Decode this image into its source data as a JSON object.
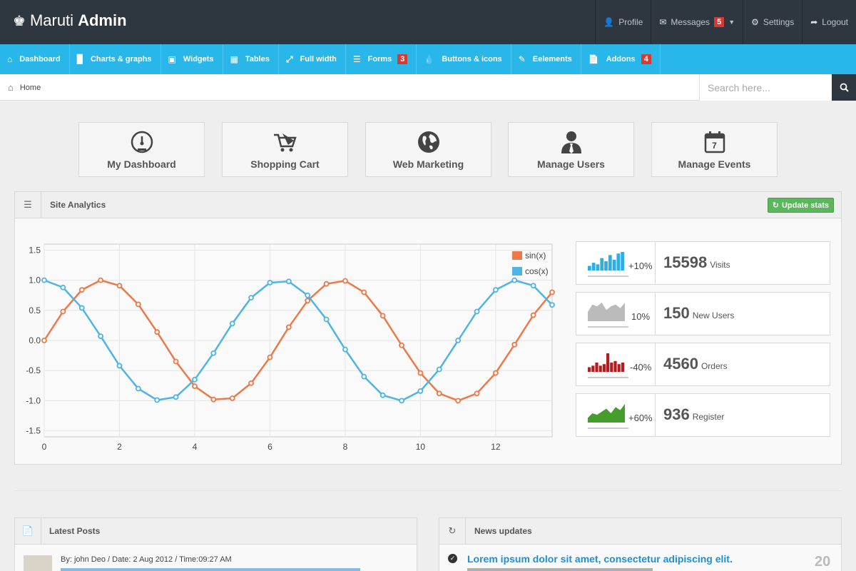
{
  "header": {
    "brand_light": "Maruti",
    "brand_bold": "Admin",
    "nav": [
      {
        "label": "Profile",
        "icon": "user-icon"
      },
      {
        "label": "Messages",
        "icon": "envelope-icon",
        "badge": "5"
      },
      {
        "label": "Settings",
        "icon": "gear-icon"
      },
      {
        "label": "Logout",
        "icon": "share-icon"
      }
    ]
  },
  "menu": [
    {
      "label": "Dashboard",
      "icon": "home-icon"
    },
    {
      "label": "Charts & graphs",
      "icon": "signal-icon"
    },
    {
      "label": "Widgets",
      "icon": "inbox-icon"
    },
    {
      "label": "Tables",
      "icon": "grid-icon"
    },
    {
      "label": "Full width",
      "icon": "fullscreen-icon"
    },
    {
      "label": "Forms",
      "icon": "list-icon",
      "badge": "3"
    },
    {
      "label": "Buttons & icons",
      "icon": "drop-icon"
    },
    {
      "label": "Eelements",
      "icon": "pencil-icon"
    },
    {
      "label": "Addons",
      "icon": "file-icon",
      "badge": "4"
    }
  ],
  "breadcrumb": {
    "home": "Home"
  },
  "search": {
    "placeholder": "Search here..."
  },
  "quick_buttons": [
    {
      "label": "My Dashboard",
      "icon": "gauge-icon"
    },
    {
      "label": "Shopping Cart",
      "icon": "cart-icon"
    },
    {
      "label": "Web Marketing",
      "icon": "globe-icon"
    },
    {
      "label": "Manage Users",
      "icon": "user-tie-icon"
    },
    {
      "label": "Manage Events",
      "icon": "calendar-icon",
      "icon_text": "7"
    }
  ],
  "analytics": {
    "title": "Site Analytics",
    "update_label": "Update stats",
    "stats": [
      {
        "pct": "+10%",
        "value": "15598",
        "label": "Visits",
        "color": "#2eaee6",
        "kind": "bars",
        "spark": [
          3,
          5,
          4,
          8,
          6,
          10,
          7,
          11,
          12
        ]
      },
      {
        "pct": "10%",
        "value": "150",
        "label": "New Users",
        "color": "#bbbbbb",
        "kind": "area",
        "spark": [
          5,
          9,
          8,
          10,
          6,
          8,
          9,
          7,
          10
        ]
      },
      {
        "pct": "-40%",
        "value": "4560",
        "label": "Orders",
        "color": "#b31d1d",
        "kind": "bars",
        "spark": [
          3,
          4,
          6,
          4,
          5,
          12,
          6,
          7,
          5,
          6
        ]
      },
      {
        "pct": "+60%",
        "value": "936",
        "label": "Register",
        "color": "#459d2d",
        "kind": "area",
        "spark": [
          3,
          6,
          5,
          7,
          9,
          6,
          10,
          8,
          12
        ]
      }
    ]
  },
  "chart_data": {
    "type": "line",
    "title": "",
    "xlabel": "",
    "ylabel": "",
    "xlim": [
      0,
      13.5
    ],
    "ylim": [
      -1.6,
      1.6
    ],
    "xticks": [
      0,
      2,
      4,
      6,
      8,
      10,
      12
    ],
    "yticks": [
      1.5,
      1.0,
      0.5,
      0.0,
      -0.5,
      -1.0,
      -1.5
    ],
    "ytick_labels": [
      "1.5",
      "1.0",
      "0.5",
      "0.0",
      "-0.5",
      "-1.0",
      "-1.5"
    ],
    "grid": true,
    "legend": "top-right",
    "x": [
      0,
      0.5,
      1,
      1.5,
      2,
      2.5,
      3,
      3.5,
      4,
      4.5,
      5,
      5.5,
      6,
      6.5,
      7,
      7.5,
      8,
      8.5,
      9,
      9.5,
      10,
      10.5,
      11,
      11.5,
      12,
      12.5,
      13,
      13.5
    ],
    "series": [
      {
        "name": "sin(x)",
        "color": "#ed7849",
        "values": [
          0.0,
          0.48,
          0.84,
          1.0,
          0.91,
          0.6,
          0.14,
          -0.35,
          -0.76,
          -0.98,
          -0.96,
          -0.71,
          -0.28,
          0.22,
          0.66,
          0.94,
          0.99,
          0.8,
          0.41,
          -0.08,
          -0.54,
          -0.88,
          -1.0,
          -0.88,
          -0.54,
          -0.07,
          0.42,
          0.8
        ]
      },
      {
        "name": "cos(x)",
        "color": "#4fb4e4",
        "values": [
          1.0,
          0.88,
          0.54,
          0.07,
          -0.42,
          -0.8,
          -0.99,
          -0.94,
          -0.65,
          -0.21,
          0.28,
          0.71,
          0.96,
          0.98,
          0.75,
          0.35,
          -0.15,
          -0.6,
          -0.91,
          -1.0,
          -0.84,
          -0.48,
          0.0,
          0.48,
          0.84,
          1.0,
          0.91,
          0.59
        ]
      }
    ]
  },
  "latest_posts": {
    "title": "Latest Posts",
    "first_meta": "By: john Deo / Date: 2 Aug 2012 / Time:09:27 AM"
  },
  "news": {
    "title": "News updates",
    "first_title": "Lorem ipsum dolor sit amet, consectetur adipiscing elit.",
    "first_day": "20"
  }
}
